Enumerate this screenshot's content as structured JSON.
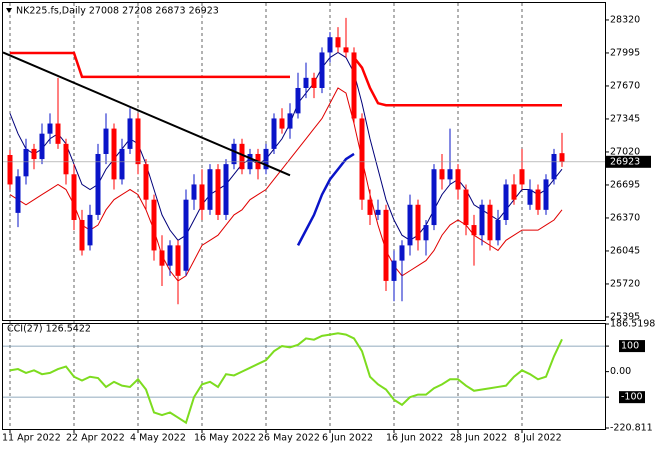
{
  "chart_data": [
    {
      "type": "candlestick",
      "title": "NK225.fs,Daily  27008 27208 26873 26923",
      "categories": [
        "11 Apr 2022",
        null,
        null,
        null,
        null,
        null,
        null,
        null,
        "22 Apr 2022",
        null,
        null,
        null,
        null,
        null,
        null,
        null,
        "4 May 2022",
        null,
        null,
        null,
        null,
        null,
        null,
        null,
        "16 May 2022",
        null,
        null,
        null,
        null,
        null,
        null,
        null,
        "26 May 2022",
        null,
        null,
        null,
        null,
        null,
        null,
        null,
        "6 Jun 2022",
        null,
        null,
        null,
        null,
        null,
        null,
        null,
        "16 Jun 2022",
        null,
        null,
        null,
        null,
        null,
        null,
        null,
        "28 Jun 2022",
        null,
        null,
        null,
        null,
        null,
        null,
        null,
        "8 Jul 2022",
        null,
        null,
        null,
        null,
        null
      ],
      "candles": [
        [
          26990,
          27040,
          26650,
          26700
        ],
        [
          26420,
          26850,
          26280,
          26780
        ],
        [
          26780,
          27150,
          26700,
          27050
        ],
        [
          27050,
          27100,
          26850,
          26950
        ],
        [
          26950,
          27300,
          26900,
          27200
        ],
        [
          27200,
          27400,
          27100,
          27300
        ],
        [
          27300,
          27750,
          27050,
          27100
        ],
        [
          27100,
          27150,
          26700,
          26800
        ],
        [
          26800,
          26900,
          26250,
          26350
        ],
        [
          26350,
          26450,
          26000,
          26050
        ],
        [
          26100,
          26500,
          26050,
          26400
        ],
        [
          26400,
          27100,
          26350,
          27000
        ],
        [
          27000,
          27400,
          26900,
          27250
        ],
        [
          27250,
          27300,
          26650,
          26750
        ],
        [
          26750,
          27150,
          26700,
          27050
        ],
        [
          27050,
          27450,
          27000,
          27350
        ],
        [
          27350,
          27400,
          26800,
          26900
        ],
        [
          26900,
          26950,
          26450,
          26550
        ],
        [
          26550,
          26600,
          25950,
          26050
        ],
        [
          26050,
          26200,
          25700,
          25900
        ],
        [
          25900,
          26150,
          25800,
          26100
        ],
        [
          26100,
          26150,
          25520,
          25800
        ],
        [
          25850,
          26650,
          25800,
          26550
        ],
        [
          26550,
          26800,
          26450,
          26700
        ],
        [
          26700,
          26850,
          26350,
          26450
        ],
        [
          26450,
          26900,
          26400,
          26850
        ],
        [
          26850,
          26900,
          26350,
          26400
        ],
        [
          26400,
          26950,
          26350,
          26900
        ],
        [
          26900,
          27150,
          26850,
          27100
        ],
        [
          27100,
          27150,
          26800,
          26850
        ],
        [
          26850,
          27050,
          26800,
          27000
        ],
        [
          27000,
          27050,
          26750,
          26850
        ],
        [
          26850,
          27100,
          26800,
          27050
        ],
        [
          27050,
          27400,
          27000,
          27350
        ],
        [
          27350,
          27450,
          27200,
          27250
        ],
        [
          27250,
          27500,
          27150,
          27400
        ],
        [
          27400,
          27800,
          27350,
          27650
        ],
        [
          27650,
          27900,
          27550,
          27750
        ],
        [
          27750,
          27800,
          27550,
          27650
        ],
        [
          27650,
          28050,
          27600,
          28000
        ],
        [
          28000,
          28200,
          27900,
          28150
        ],
        [
          28150,
          28250,
          28000,
          28050
        ],
        [
          28050,
          28340,
          27950,
          28000
        ],
        [
          28000,
          28050,
          27300,
          27350
        ],
        [
          27350,
          27400,
          26450,
          26550
        ],
        [
          26550,
          26650,
          26300,
          26400
        ],
        [
          26400,
          26550,
          26350,
          26450
        ],
        [
          26450,
          26500,
          25650,
          25750
        ],
        [
          25750,
          26050,
          25550,
          25950
        ],
        [
          25950,
          26150,
          25550,
          26100
        ],
        [
          26100,
          26600,
          26000,
          26500
        ],
        [
          26500,
          26550,
          26050,
          26150
        ],
        [
          26150,
          26350,
          26000,
          26300
        ],
        [
          26300,
          26900,
          26250,
          26850
        ],
        [
          26850,
          27000,
          26650,
          26750
        ],
        [
          26750,
          27250,
          26700,
          26850
        ],
        [
          26850,
          26900,
          26550,
          26650
        ],
        [
          26650,
          26700,
          26200,
          26300
        ],
        [
          26300,
          26400,
          25900,
          26200
        ],
        [
          26200,
          26550,
          26100,
          26500
        ],
        [
          26500,
          26550,
          26050,
          26150
        ],
        [
          26150,
          26450,
          26100,
          26350
        ],
        [
          26350,
          26750,
          26300,
          26700
        ],
        [
          26700,
          26800,
          26500,
          26550
        ],
        [
          26850,
          27050,
          26650,
          26700
        ],
        [
          26500,
          26750,
          26450,
          26650
        ],
        [
          26650,
          26700,
          26400,
          26450
        ],
        [
          26450,
          26800,
          26400,
          26750
        ],
        [
          26750,
          27050,
          26700,
          27000
        ],
        [
          27008,
          27208,
          26873,
          26923
        ]
      ],
      "up_color": "#0a14c8",
      "down_color": "#ff0000",
      "ylim": [
        25365,
        28487
      ],
      "yticks": [
        28320,
        27995,
        27670,
        27345,
        27020,
        26695,
        26370,
        26045,
        25720,
        25395
      ],
      "overlays": [
        {
          "color": "#00007a",
          "width": 1,
          "values": [
            27400,
            27200,
            27050,
            27000,
            27050,
            27150,
            27200,
            27100,
            26900,
            26700,
            26650,
            26700,
            26850,
            26950,
            27050,
            27150,
            27100,
            26900,
            26650,
            26400,
            26250,
            26150,
            26200,
            26350,
            26500,
            26600,
            26650,
            26700,
            26800,
            26900,
            26950,
            26900,
            26950,
            27050,
            27150,
            27300,
            27500,
            27600,
            27700,
            27850,
            27950,
            28000,
            27950,
            27800,
            27500,
            27150,
            26850,
            26550,
            26350,
            26200,
            26150,
            26200,
            26300,
            26450,
            26600,
            26700,
            26750,
            26650,
            26500,
            26450,
            26400,
            26350,
            26450,
            26550,
            26650,
            26650,
            26600,
            26650,
            26750,
            26850
          ]
        },
        {
          "color": "#e00000",
          "width": 1,
          "values": [
            26600,
            26550,
            26500,
            26550,
            26600,
            26650,
            26700,
            26650,
            26500,
            26300,
            26250,
            26300,
            26450,
            26550,
            26600,
            26650,
            26600,
            26450,
            26250,
            26000,
            25850,
            25750,
            25800,
            25950,
            26100,
            26150,
            26200,
            26300,
            26400,
            26450,
            26550,
            26600,
            26650,
            26750,
            26850,
            26950,
            27050,
            27150,
            27250,
            27350,
            27500,
            27650,
            27600,
            27300,
            26950,
            26600,
            26300,
            26050,
            25900,
            25800,
            25850,
            25900,
            25950,
            26050,
            26200,
            26300,
            26350,
            26300,
            26200,
            26150,
            26100,
            26050,
            26150,
            26200,
            26250,
            26250,
            26250,
            26300,
            26350,
            26450
          ]
        },
        {
          "color": "#0a14c8",
          "width": 2.5,
          "values": [
            null,
            null,
            null,
            null,
            null,
            null,
            null,
            null,
            null,
            null,
            null,
            null,
            null,
            null,
            null,
            null,
            null,
            null,
            null,
            null,
            null,
            null,
            null,
            null,
            null,
            null,
            null,
            null,
            null,
            null,
            null,
            null,
            null,
            null,
            null,
            null,
            26100,
            26250,
            26400,
            26600,
            26750,
            26850,
            26950,
            27000,
            null,
            null,
            null,
            null,
            null,
            null,
            null,
            null,
            null,
            null,
            null,
            null,
            null,
            null,
            null,
            null,
            null,
            null,
            null,
            null,
            null,
            null,
            null,
            null,
            null,
            null
          ]
        },
        {
          "color": "#ff0000",
          "width": 2.5,
          "values": [
            27995,
            27995,
            27995,
            27995,
            27995,
            27995,
            27995,
            27995,
            27995,
            27760,
            27760,
            27760,
            27760,
            27760,
            27760,
            27760,
            27760,
            27760,
            27760,
            27760,
            27760,
            27760,
            27760,
            27760,
            27760,
            27760,
            27760,
            27760,
            27760,
            27760,
            27760,
            27760,
            27760,
            27760,
            27760,
            27760,
            null,
            null,
            null,
            null,
            null,
            null,
            null,
            27950,
            27850,
            27650,
            27500,
            27480,
            27480,
            27480,
            27480,
            27480,
            27480,
            27480,
            27480,
            27480,
            27480,
            27480,
            27480,
            27480,
            27480,
            27480,
            27480,
            27480,
            27480,
            27480,
            27480,
            27480,
            27480,
            27480
          ]
        }
      ],
      "trendline": {
        "color": "#000000",
        "points": [
          [
            0,
            28000
          ],
          [
            35,
            26790
          ]
        ]
      }
    },
    {
      "type": "line",
      "title": "CCI(27) 126.5422",
      "color": "#7ddc1f",
      "values": [
        5,
        10,
        -5,
        5,
        -10,
        -5,
        10,
        20,
        -20,
        -35,
        -20,
        -25,
        -60,
        -40,
        -55,
        -60,
        -30,
        -70,
        -160,
        -170,
        -160,
        -180,
        -200,
        -100,
        -50,
        -40,
        -60,
        -10,
        -15,
        0,
        15,
        30,
        45,
        80,
        100,
        95,
        105,
        130,
        125,
        140,
        145,
        150,
        145,
        130,
        80,
        -20,
        -50,
        -70,
        -110,
        -130,
        -100,
        -90,
        -90,
        -65,
        -50,
        -30,
        -30,
        -55,
        -75,
        -70,
        -65,
        -60,
        -55,
        -20,
        5,
        -10,
        -30,
        -20,
        60,
        126.5422
      ],
      "ylim": [
        -220.811,
        186.5198
      ],
      "yticks": [
        186.5198,
        100,
        {
          "value": 0,
          "label": "0.00"
        },
        -100,
        -220.811
      ],
      "levels": [
        100,
        -100
      ]
    }
  ]
}
